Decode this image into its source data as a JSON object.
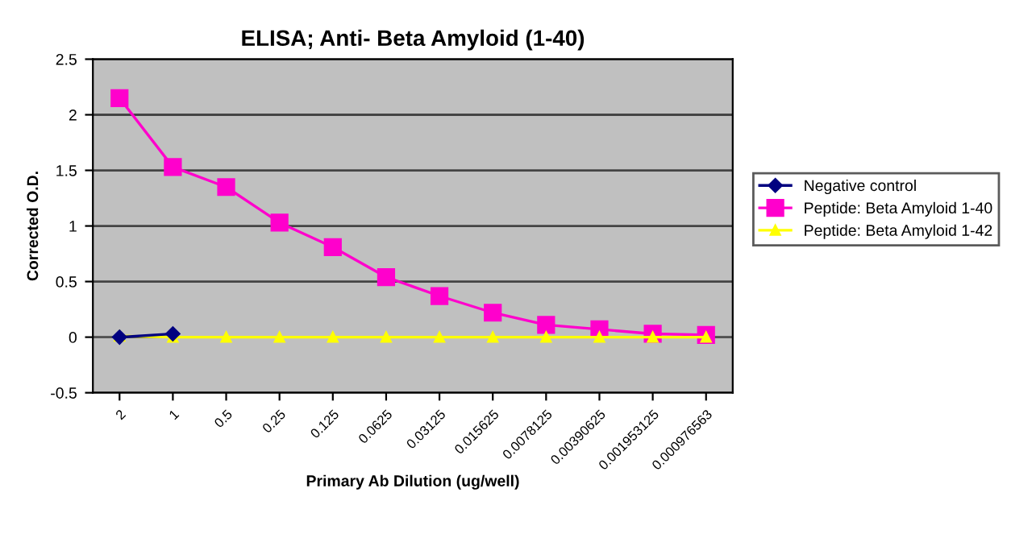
{
  "chart_data": {
    "type": "line",
    "title": "ELISA; Anti- Beta Amyloid (1-40)",
    "xlabel": "Primary Ab Dilution (ug/well)",
    "ylabel": "Corrected O.D.",
    "categories": [
      "2",
      "1",
      "0.5",
      "0.25",
      "0.125",
      "0.0625",
      "0.03125",
      "0.015625",
      "0.0078125",
      "0.00390625",
      "0.001953125",
      "0.000976563"
    ],
    "series": [
      {
        "name": "Negative control",
        "color": "#000080",
        "marker": "diamond",
        "values": [
          0.0,
          0.03,
          null,
          null,
          null,
          null,
          null,
          null,
          null,
          null,
          null,
          null
        ]
      },
      {
        "name": "Peptide: Beta Amyloid 1-40",
        "color": "#ff00cc",
        "marker": "square",
        "values": [
          2.15,
          1.53,
          1.35,
          1.03,
          0.81,
          0.54,
          0.37,
          0.22,
          0.11,
          0.07,
          0.03,
          0.02
        ]
      },
      {
        "name": "Peptide: Beta Amyloid 1-42",
        "color": "#ffff00",
        "marker": "triangle",
        "values": [
          0.01,
          0.0,
          0.0,
          0.0,
          0.0,
          0.0,
          0.0,
          0.0,
          0.0,
          0.0,
          0.0,
          0.0
        ]
      }
    ],
    "ylim": [
      -0.5,
      2.5
    ],
    "yticks": [
      -0.5,
      0,
      0.5,
      1,
      1.5,
      2,
      2.5
    ],
    "grid": "y",
    "legend": "right"
  }
}
